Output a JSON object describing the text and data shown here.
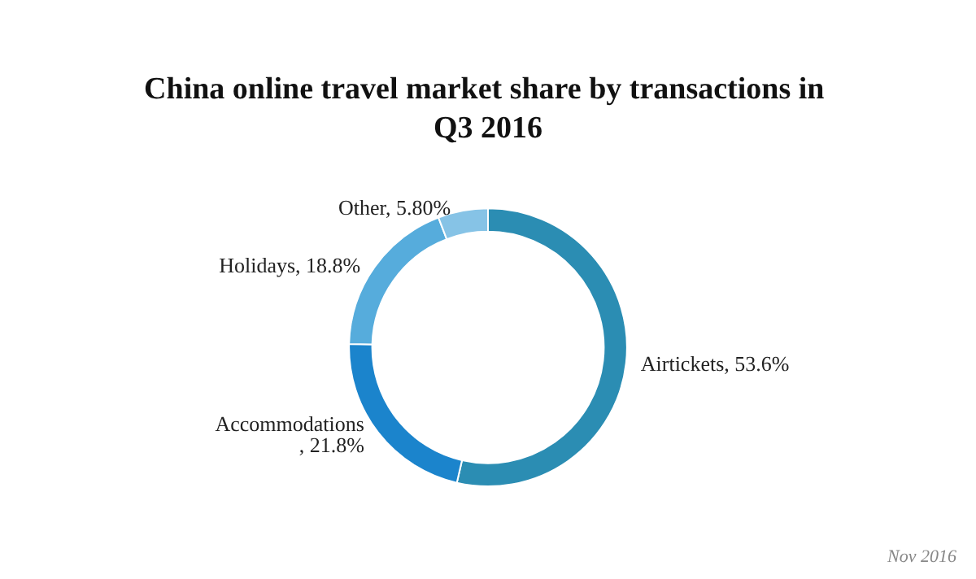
{
  "chart_data": {
    "type": "donut",
    "title": "China online travel market share by transactions in Q3 2016",
    "categories": [
      "Airtickets",
      "Accommodations",
      "Holidays",
      "Other"
    ],
    "values": [
      53.6,
      21.8,
      18.8,
      5.8
    ],
    "value_labels": [
      ", 53.6%",
      ", 21.8%",
      ", 18.8%",
      ", 5.80%"
    ],
    "colors": [
      "#2b8db3",
      "#1b84cc",
      "#56acdc",
      "#86c3e6"
    ],
    "legend": false,
    "annotations": [
      "Nov 2016"
    ]
  }
}
